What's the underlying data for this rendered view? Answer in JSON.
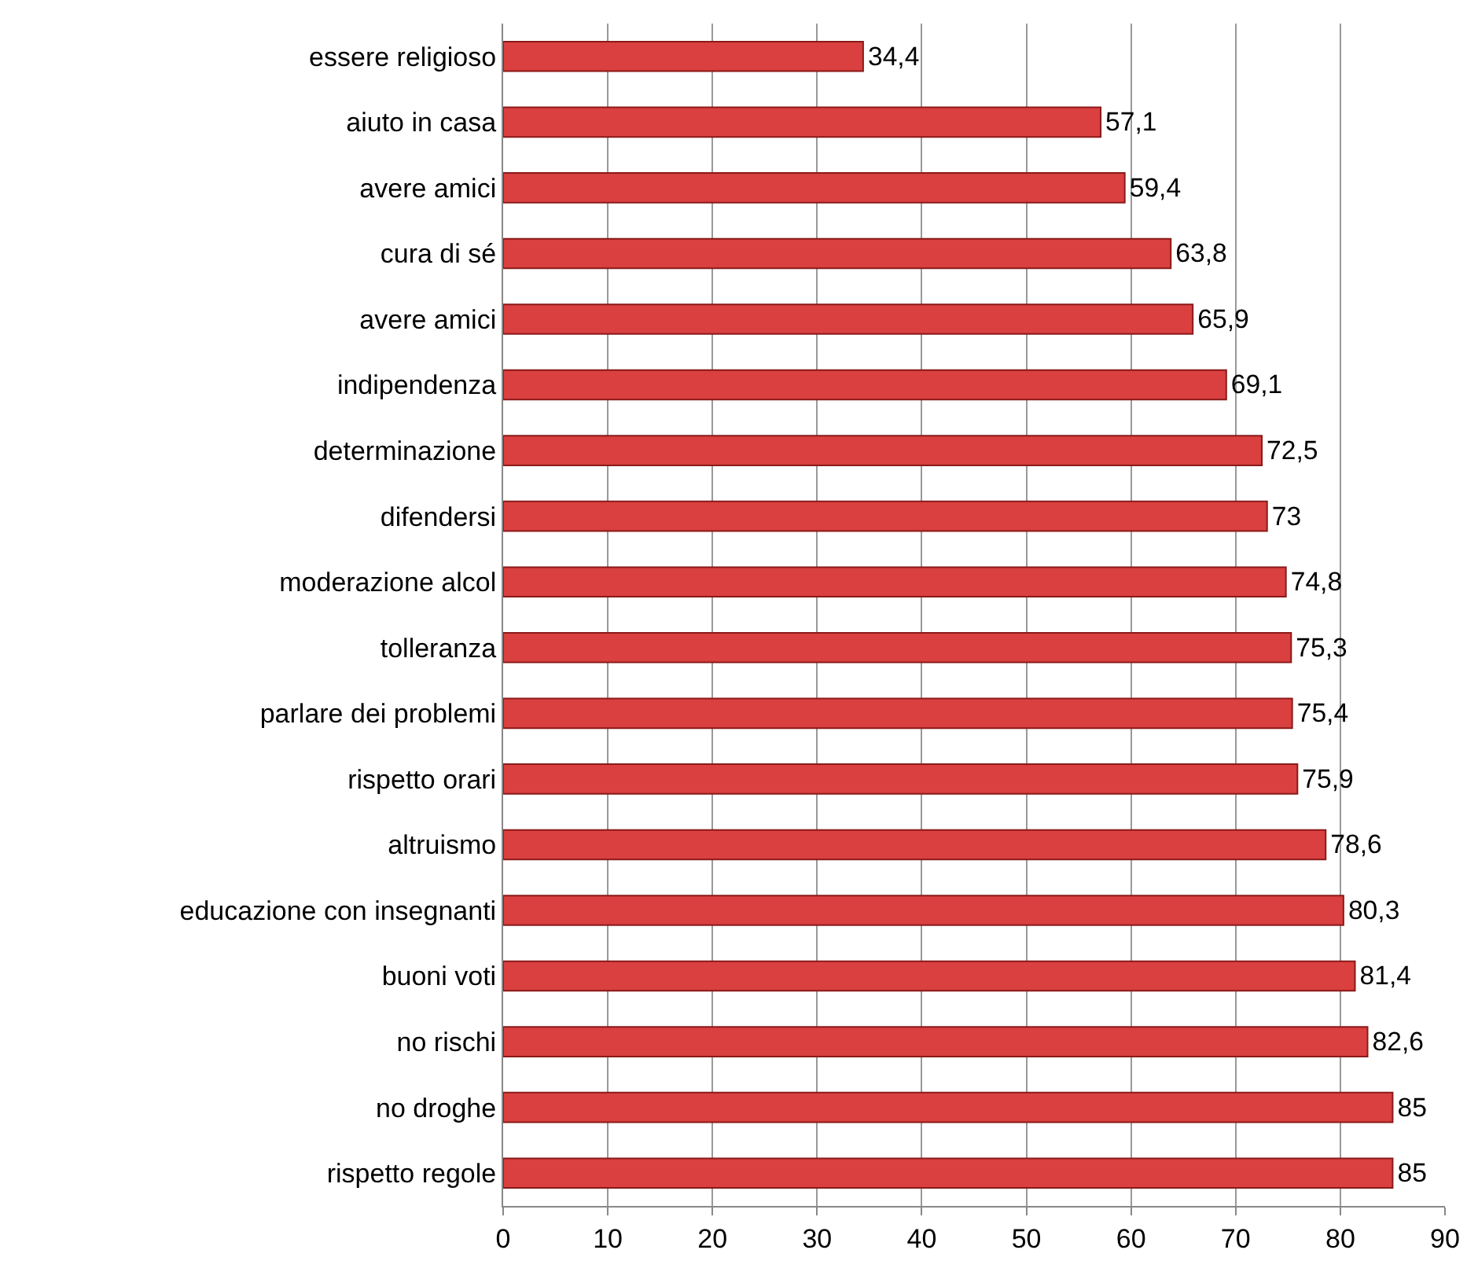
{
  "chart_data": {
    "type": "bar",
    "orientation": "horizontal",
    "categories": [
      "essere religioso",
      "aiuto in casa",
      "avere amici",
      "cura di sé",
      "avere amici",
      "indipendenza",
      "determinazione",
      "difendersi",
      "moderazione alcol",
      "tolleranza",
      "parlare dei problemi",
      "rispetto orari",
      "altruismo",
      "educazione con insegnanti",
      "buoni voti",
      "no rischi",
      "no droghe",
      "rispetto regole"
    ],
    "values": [
      34.4,
      57.1,
      59.4,
      63.8,
      65.9,
      69.1,
      72.5,
      73,
      74.8,
      75.3,
      75.4,
      75.9,
      78.6,
      80.3,
      81.4,
      82.6,
      85,
      85
    ],
    "value_labels": [
      "34,4",
      "57,1",
      "59,4",
      "63,8",
      "65,9",
      "69,1",
      "72,5",
      "73",
      "74,8",
      "75,3",
      "75,4",
      "75,9",
      "78,6",
      "80,3",
      "81,4",
      "82,6",
      "85",
      "85"
    ],
    "color": "#d9403f",
    "xlim": [
      0,
      90
    ],
    "xticks": [
      0,
      10,
      20,
      30,
      40,
      50,
      60,
      70,
      80,
      90
    ],
    "grid": "x"
  }
}
